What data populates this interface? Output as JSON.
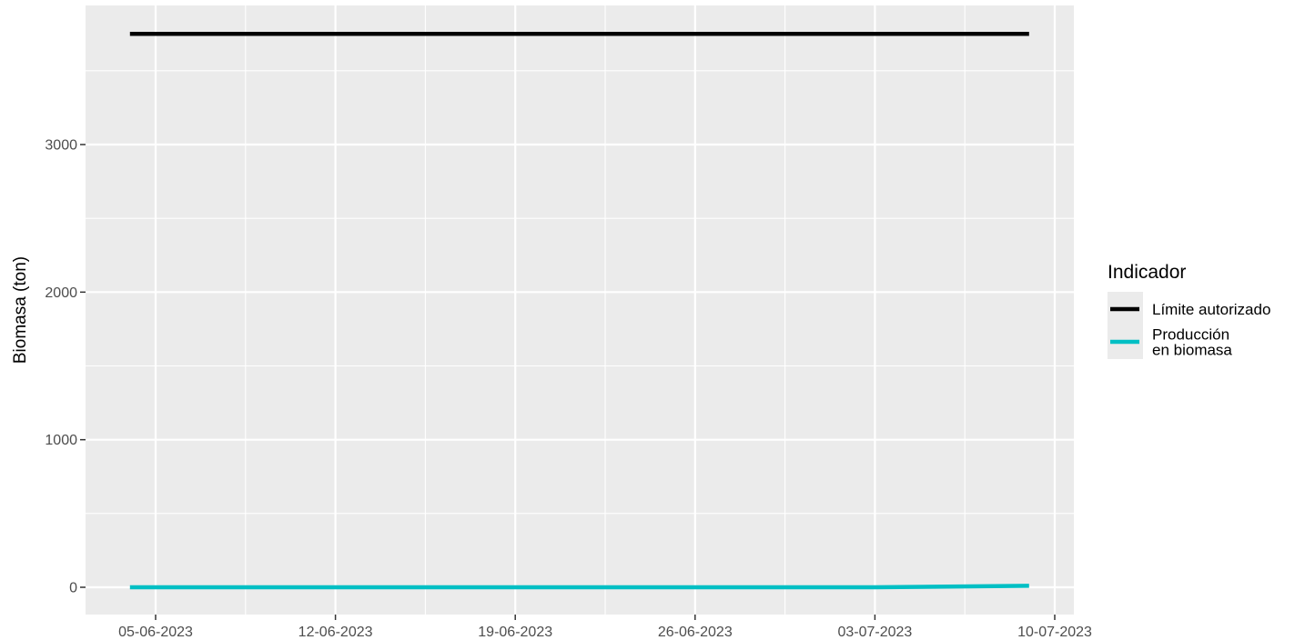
{
  "chart_data": {
    "type": "line",
    "ylabel": "Biomasa (ton)",
    "xlabel": "",
    "x_tick_labels": [
      "05-06-2023",
      "12-06-2023",
      "19-06-2023",
      "26-06-2023",
      "03-07-2023",
      "10-07-2023"
    ],
    "y_tick_labels": [
      "0",
      "1000",
      "2000",
      "3000"
    ],
    "ylim": [
      -120,
      3880
    ],
    "xlim": [
      "2023-06-01",
      "2023-07-10"
    ],
    "grid": true,
    "legend": {
      "title": "Indicador",
      "placement": "right"
    },
    "series": [
      {
        "name": "Límite autorizado",
        "name_lines": [
          "Límite autorizado"
        ],
        "color": "#000000",
        "points": [
          [
            "2023-06-04",
            3750
          ],
          [
            "2023-07-09",
            3750
          ]
        ]
      },
      {
        "name": "Producción en biomasa",
        "name_lines": [
          "Producción",
          "en biomasa"
        ],
        "color": "#00bfc4",
        "points": [
          [
            "2023-06-04",
            0
          ],
          [
            "2023-07-03",
            0
          ],
          [
            "2023-07-09",
            10
          ]
        ]
      }
    ],
    "colors": {
      "panel": "#ebebeb",
      "grid": "#ffffff"
    }
  }
}
